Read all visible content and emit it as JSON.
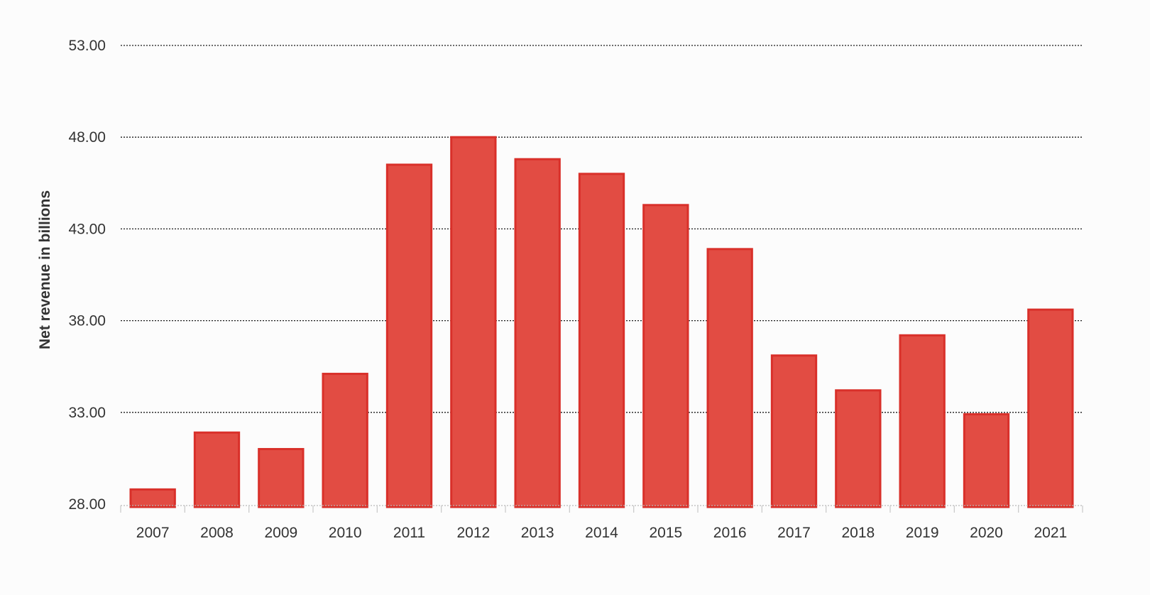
{
  "chart_data": {
    "type": "bar",
    "ylabel": "Net revenue in billions",
    "xlabel": "",
    "categories": [
      "2007",
      "2008",
      "2009",
      "2010",
      "2011",
      "2012",
      "2013",
      "2014",
      "2015",
      "2016",
      "2017",
      "2018",
      "2019",
      "2020",
      "2021"
    ],
    "values": [
      28.8,
      31.9,
      31.0,
      35.1,
      46.5,
      48.0,
      46.8,
      46.0,
      44.3,
      41.9,
      36.1,
      34.2,
      37.2,
      32.9,
      38.6
    ],
    "ylim": [
      28,
      53
    ],
    "yticks": [
      "28.00",
      "33.00",
      "38.00",
      "43.00",
      "48.00",
      "53.00"
    ],
    "grid": true,
    "bar_color": "#e24c43",
    "bar_border_color": "#d9302a",
    "grid_color": "#1a1a1a",
    "text_color": "#333333"
  }
}
